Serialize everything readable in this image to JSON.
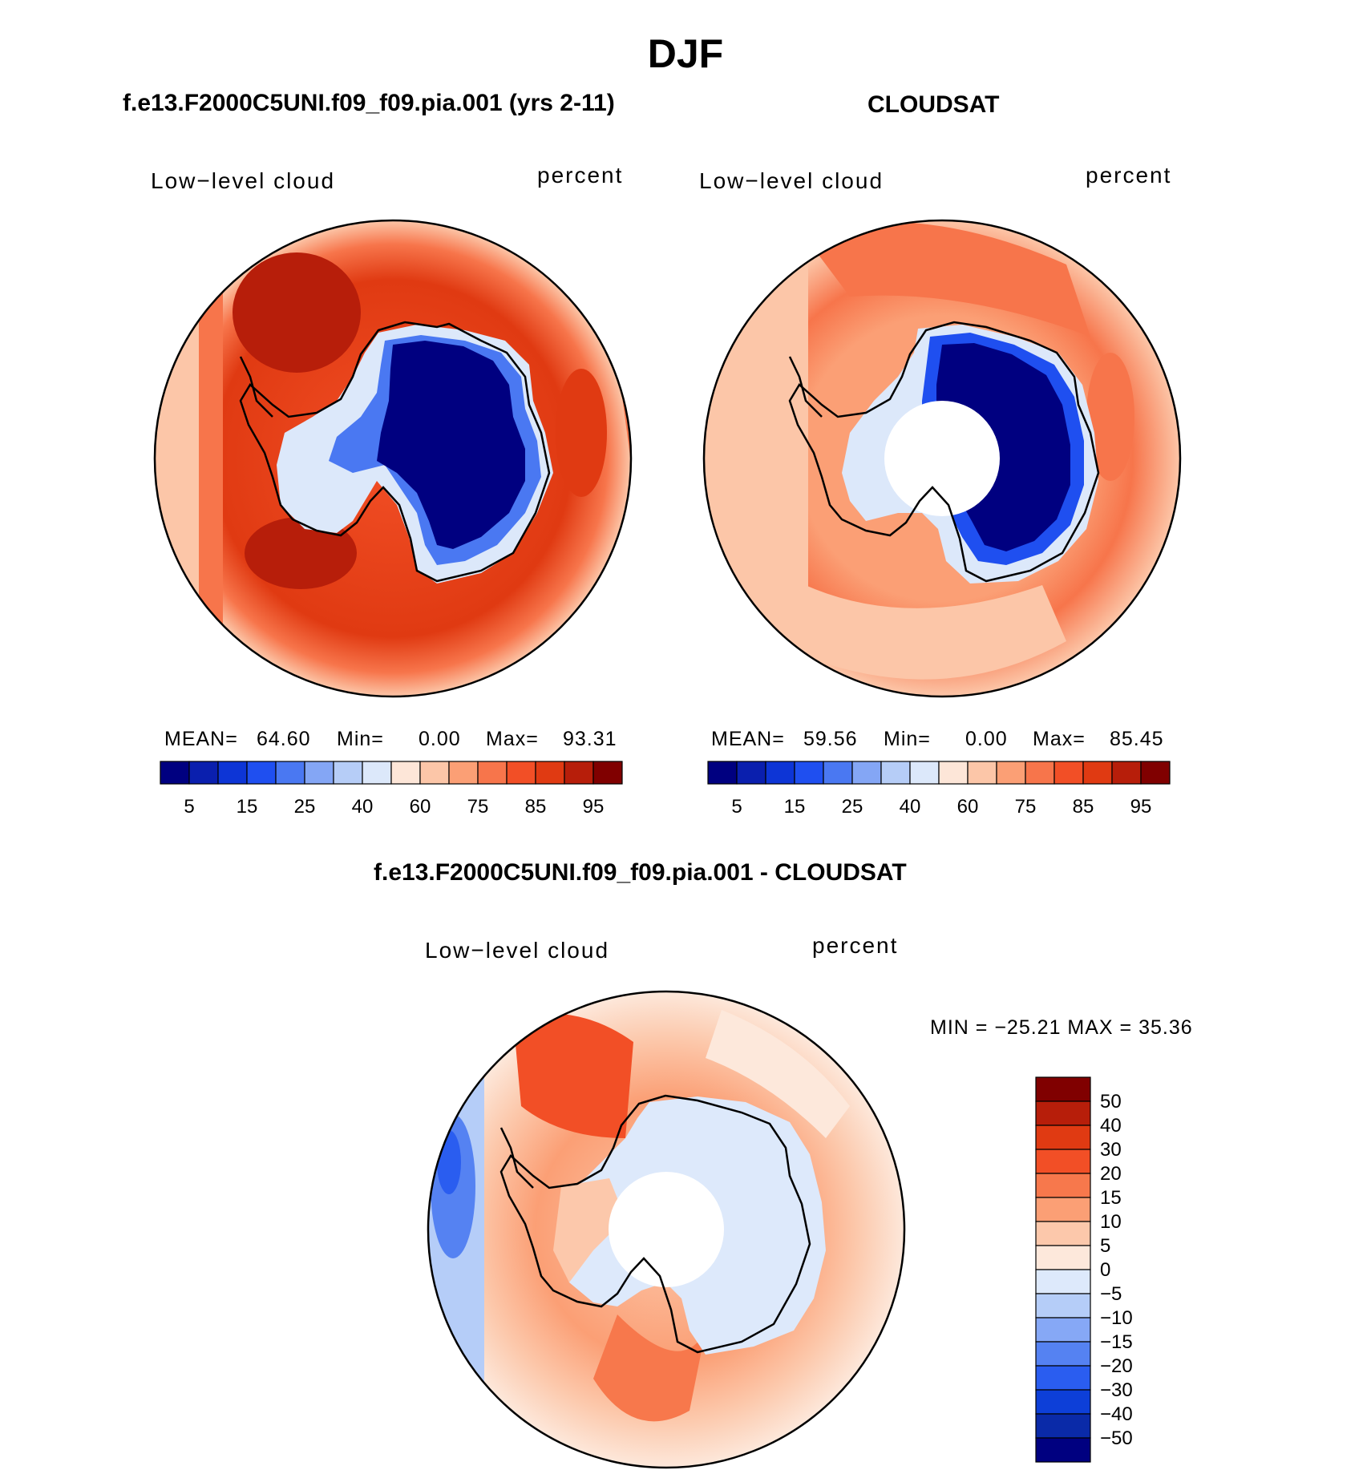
{
  "figure": {
    "title": "DJF",
    "panel_left_title": "f.e13.F2000C5UNI.f09_f09.pia.001 (yrs 2-11)",
    "panel_right_title": "CLOUDSAT",
    "panel_bottom_title": "f.e13.F2000C5UNI.f09_f09.pia.001 - CLOUDSAT",
    "variable_label": "Low−level cloud",
    "units_label": "percent"
  },
  "stats": {
    "model": {
      "mean_label": "MEAN=",
      "mean": "64.60",
      "min_label": "Min=",
      "min": "0.00",
      "max_label": "Max=",
      "max": "93.31"
    },
    "obs": {
      "mean_label": "MEAN=",
      "mean": "59.56",
      "min_label": "Min=",
      "min": "0.00",
      "max_label": "Max=",
      "max": "85.45"
    },
    "diff": {
      "text": "MIN = −25.21  MAX =   35.36"
    }
  },
  "colors": {
    "abs_scale": [
      "#000080",
      "#0a1fae",
      "#0d35d6",
      "#1f4ff0",
      "#4a78f2",
      "#84a6f5",
      "#b6cdf7",
      "#dce8fa",
      "#fde6d8",
      "#fcc6a8",
      "#fb9f75",
      "#f7754b",
      "#f24f26",
      "#e03a12",
      "#b71e0a",
      "#800000"
    ],
    "diff_scale": [
      "#000080",
      "#0a2aa8",
      "#0d3fd8",
      "#2a5df0",
      "#5582f2",
      "#86a8f6",
      "#b5cdf8",
      "#dde9fb",
      "#fde8db",
      "#fcc8ab",
      "#fb9f75",
      "#f7784c",
      "#f24f26",
      "#e03a12",
      "#b71e0a",
      "#800000"
    ],
    "coastline": "#000000"
  },
  "chart_data": [
    {
      "type": "heatmap",
      "title": "f.e13.F2000C5UNI.f09_f09.pia.001 (yrs 2-11)",
      "projection": "south-polar stereographic",
      "variable": "Low-level cloud",
      "units": "percent",
      "colorbar_levels": [
        5,
        10,
        15,
        20,
        25,
        30,
        40,
        50,
        60,
        70,
        75,
        80,
        85,
        90,
        95
      ],
      "colorbar_tick_labels": [
        "5",
        "15",
        "25",
        "40",
        "60",
        "75",
        "85",
        "95"
      ],
      "mean": 64.6,
      "min": 0.0,
      "max": 93.31
    },
    {
      "type": "heatmap",
      "title": "CLOUDSAT",
      "projection": "south-polar stereographic",
      "variable": "Low-level cloud",
      "units": "percent",
      "colorbar_levels": [
        5,
        10,
        15,
        20,
        25,
        30,
        40,
        50,
        60,
        70,
        75,
        80,
        85,
        90,
        95
      ],
      "colorbar_tick_labels": [
        "5",
        "15",
        "25",
        "40",
        "60",
        "75",
        "85",
        "95"
      ],
      "mean": 59.56,
      "min": 0.0,
      "max": 85.45
    },
    {
      "type": "heatmap",
      "title": "f.e13.F2000C5UNI.f09_f09.pia.001 - CLOUDSAT",
      "projection": "south-polar stereographic",
      "variable": "Low-level cloud",
      "units": "percent",
      "colorbar_tick_labels": [
        "50",
        "40",
        "30",
        "20",
        "15",
        "10",
        "5",
        "0",
        "−5",
        "−10",
        "−15",
        "−20",
        "−30",
        "−40",
        "−50"
      ],
      "min": -25.21,
      "max": 35.36
    }
  ]
}
